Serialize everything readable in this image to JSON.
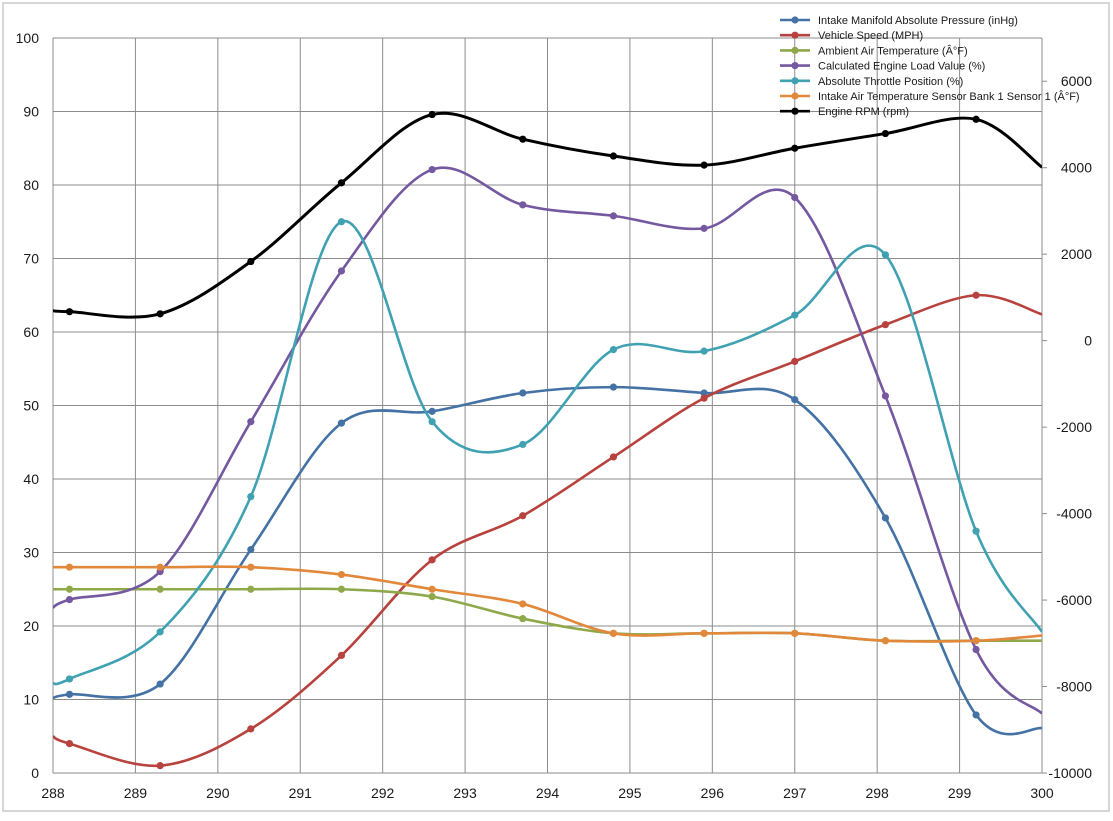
{
  "chart_data": {
    "type": "line",
    "x": [
      288.2,
      289.3,
      290.4,
      291.5,
      292.6,
      293.7,
      294.8,
      295.9,
      297.0,
      298.1,
      299.2
    ],
    "x_ticks": [
      "288",
      "289",
      "290",
      "291",
      "292",
      "293",
      "294",
      "295",
      "296",
      "297",
      "298",
      "299",
      "300"
    ],
    "xlim": [
      288,
      300
    ],
    "ylim_left": [
      0,
      100
    ],
    "y_ticks_left": [
      "0",
      "10",
      "20",
      "30",
      "40",
      "50",
      "60",
      "70",
      "80",
      "90",
      "100"
    ],
    "ylim_right": [
      -10000,
      7000
    ],
    "y_ticks_right": [
      "-10000",
      "-8000",
      "-6000",
      "-4000",
      "-2000",
      "0",
      "2000",
      "4000",
      "6000"
    ],
    "grid": true,
    "legend_position": "top-right",
    "series": [
      {
        "name": "Intake Manifold Absolute Pressure (inHg)",
        "color": "#4472a4",
        "axis": "left",
        "values": [
          10.7,
          12.1,
          30.4,
          47.6,
          49.2,
          51.7,
          52.5,
          51.7,
          50.8,
          34.7,
          7.9
        ],
        "start": 10.2,
        "end": 6.1
      },
      {
        "name": "Vehicle Speed (MPH)",
        "color": "#b8423d",
        "axis": "left",
        "values": [
          4,
          1,
          6,
          16,
          29,
          35,
          43,
          51,
          56,
          61,
          65
        ],
        "start": 5,
        "end": 62.4
      },
      {
        "name": "Ambient Air Temperature (Â°F)",
        "color": "#8ea84a",
        "axis": "left",
        "values": [
          25,
          25,
          25,
          25,
          24,
          21,
          19,
          19,
          19,
          18,
          18
        ],
        "start": 25,
        "end": 18
      },
      {
        "name": "Calculated Engine Load Value (%)",
        "color": "#7458a0",
        "axis": "left",
        "values": [
          23.6,
          27.4,
          47.8,
          68.3,
          82.1,
          77.3,
          75.8,
          74.1,
          78.3,
          51.3,
          16.8
        ],
        "start": 22.5,
        "end": 8.1
      },
      {
        "name": "Absolute Throttle Position (%)",
        "color": "#3fa1b2",
        "axis": "left",
        "values": [
          12.8,
          19.2,
          37.6,
          75.0,
          47.8,
          44.7,
          57.6,
          57.4,
          62.3,
          70.5,
          32.9
        ],
        "start": 12.2,
        "end": 19.2
      },
      {
        "name": "Intake Air Temperature Sensor Bank 1 Sensor 1 (Â°F)",
        "color": "#e2883a",
        "axis": "left",
        "values": [
          28,
          28,
          28,
          27,
          25,
          23,
          19,
          19,
          19,
          18,
          18
        ],
        "start": 28,
        "end": 18.7
      },
      {
        "name": "Engine RPM (rpm)",
        "color": "#000000",
        "axis": "right",
        "values": [
          670,
          620,
          1830,
          3650,
          5230,
          4660,
          4270,
          4060,
          4450,
          4790,
          5120
        ],
        "start": 690,
        "end": 4010
      }
    ]
  }
}
